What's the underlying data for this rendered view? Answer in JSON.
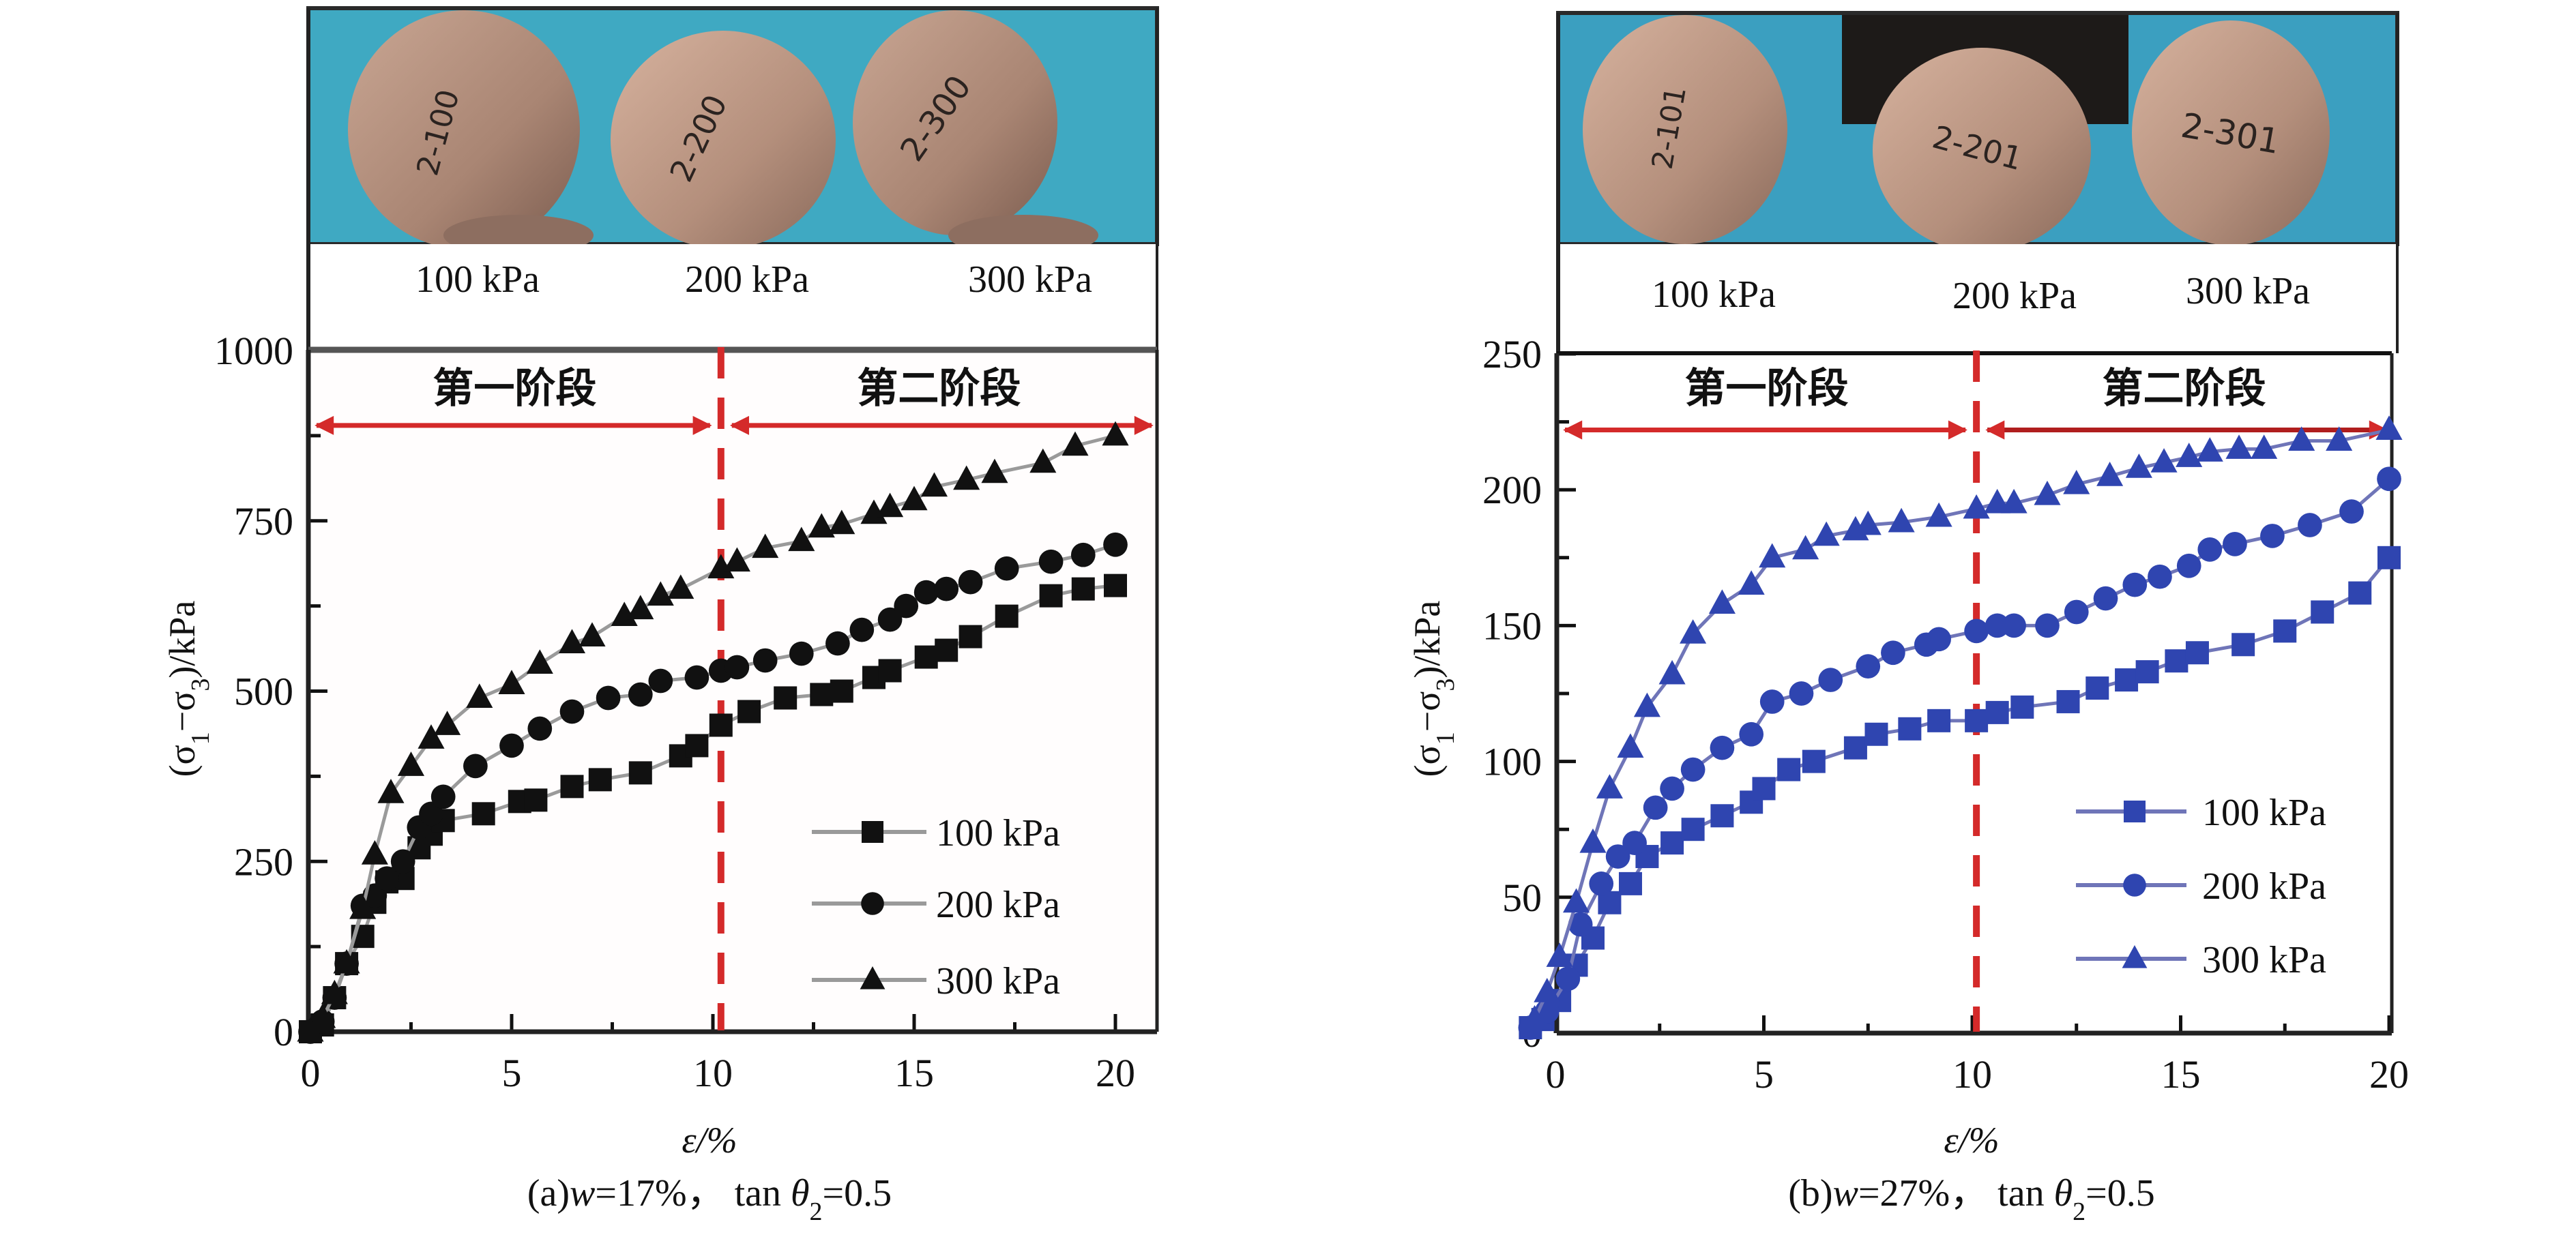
{
  "chart_data": [
    {
      "id": "a",
      "type": "line",
      "caption": {
        "prefix": "(a)",
        "var": "w",
        "moisture": "=17%，",
        "tan": " tan ",
        "theta": "θ",
        "sub": "2",
        "value": "=0.5"
      },
      "photo_labels": [
        "100 kPa",
        "200 kPa",
        "300 kPa"
      ],
      "specimen_marks": [
        "2-100",
        "2-200",
        "2-300"
      ],
      "xlabel": "ε/%",
      "ylabel": {
        "open": "(σ",
        "s1": "1",
        "minus": "−σ",
        "s3": "3",
        "close": ")/kPa"
      },
      "xlim": [
        0,
        21
      ],
      "ylim": [
        0,
        1000
      ],
      "xticks": [
        0,
        5,
        10,
        15,
        20
      ],
      "xtick_labels": [
        "0",
        "5",
        "10",
        "15",
        "20"
      ],
      "yticks": [
        0,
        250,
        500,
        750,
        1000
      ],
      "ytick_labels": [
        "0",
        "250",
        "500",
        "750",
        "1000"
      ],
      "stage_divider_x": 10.2,
      "stage_arrow_y": 890,
      "stages": [
        "第一阶段",
        "第二阶段"
      ],
      "legend_position": "lower-right",
      "marker_color": "#111111",
      "line_color": "#9a9a9a",
      "series": [
        {
          "name": "100 kPa",
          "marker": "square",
          "x": [
            0,
            0.3,
            0.6,
            0.9,
            1.3,
            1.6,
            1.9,
            2.3,
            2.7,
            3.0,
            3.3,
            4.3,
            5.2,
            5.6,
            6.5,
            7.2,
            8.2,
            9.2,
            9.6,
            10.2,
            10.9,
            11.8,
            12.7,
            13.2,
            14.0,
            14.4,
            15.3,
            15.8,
            16.4,
            17.3,
            18.4,
            19.2,
            20.0
          ],
          "y": [
            0,
            10,
            50,
            100,
            140,
            190,
            220,
            225,
            270,
            290,
            310,
            320,
            338,
            340,
            360,
            370,
            380,
            405,
            420,
            450,
            470,
            490,
            495,
            500,
            520,
            530,
            550,
            560,
            580,
            610,
            640,
            650,
            655
          ]
        },
        {
          "name": "200 kPa",
          "marker": "circle",
          "x": [
            0,
            0.3,
            0.6,
            0.9,
            1.3,
            1.6,
            1.9,
            2.3,
            2.7,
            3.0,
            3.3,
            4.1,
            5.0,
            5.7,
            6.5,
            7.4,
            8.2,
            8.7,
            9.6,
            10.2,
            10.6,
            11.3,
            12.2,
            13.1,
            13.7,
            14.4,
            14.8,
            15.3,
            15.8,
            16.4,
            17.3,
            18.4,
            19.2,
            20.0
          ],
          "y": [
            0,
            15,
            50,
            100,
            185,
            200,
            225,
            250,
            300,
            320,
            345,
            390,
            420,
            445,
            470,
            490,
            495,
            515,
            520,
            530,
            535,
            545,
            555,
            570,
            590,
            605,
            625,
            645,
            650,
            660,
            680,
            690,
            700,
            715
          ]
        },
        {
          "name": "300 kPa",
          "marker": "triangle",
          "x": [
            0,
            0.3,
            0.6,
            0.9,
            1.3,
            1.6,
            2.0,
            2.5,
            3.0,
            3.4,
            4.2,
            5.0,
            5.7,
            6.5,
            7.0,
            7.8,
            8.2,
            8.7,
            9.2,
            10.2,
            10.6,
            11.3,
            12.2,
            12.7,
            13.2,
            14.0,
            14.4,
            15.0,
            15.5,
            16.3,
            17.0,
            18.2,
            19.0,
            20.0
          ],
          "y": [
            0,
            20,
            55,
            100,
            180,
            260,
            350,
            390,
            430,
            450,
            490,
            510,
            540,
            570,
            580,
            610,
            620,
            640,
            650,
            680,
            690,
            710,
            720,
            740,
            745,
            760,
            770,
            780,
            800,
            810,
            820,
            835,
            860,
            875
          ]
        }
      ]
    },
    {
      "id": "b",
      "type": "line",
      "caption": {
        "prefix": "(b)",
        "var": "w",
        "moisture": "=27%，",
        "tan": " tan ",
        "theta": "θ",
        "sub": "2",
        "value": "=0.5"
      },
      "photo_labels": [
        "100 kPa",
        "200 kPa",
        "300 kPa"
      ],
      "specimen_marks": [
        "2-101",
        "2-201",
        "2-301"
      ],
      "xlabel": "ε/%",
      "ylabel": {
        "open": "(σ",
        "s1": "1",
        "minus": "−σ",
        "s3": "3",
        "close": ")/kPa"
      },
      "xlim": [
        -0.7,
        20.2
      ],
      "ylim": [
        0,
        250
      ],
      "xticks": [
        0,
        5,
        10,
        15,
        20
      ],
      "xtick_labels": [
        "0",
        "5",
        "10",
        "15",
        "20"
      ],
      "yticks": [
        0,
        50,
        100,
        150,
        200,
        250
      ],
      "ytick_labels": [
        "0",
        "50",
        "100",
        "150",
        "200",
        "250"
      ],
      "stage_divider_x": 10.1,
      "stage_arrow_y": 222,
      "stages": [
        "第一阶段",
        "第二阶段"
      ],
      "legend_position": "lower-right",
      "marker_color": "#2f45b0",
      "line_color": "#6f75b8",
      "series": [
        {
          "name": "100 kPa",
          "marker": "square",
          "x": [
            -0.6,
            -0.3,
            0.1,
            0.5,
            0.9,
            1.3,
            1.8,
            2.2,
            2.8,
            3.3,
            4.0,
            4.7,
            5.0,
            5.6,
            6.2,
            7.2,
            7.7,
            8.5,
            9.2,
            10.1,
            10.6,
            11.2,
            12.3,
            13.0,
            13.7,
            14.2,
            14.9,
            15.4,
            16.5,
            17.5,
            18.4,
            19.3,
            20.0
          ],
          "y": [
            2,
            5,
            12,
            25,
            35,
            48,
            55,
            65,
            70,
            75,
            80,
            85,
            90,
            97,
            100,
            105,
            110,
            112,
            115,
            115,
            118,
            120,
            122,
            127,
            130,
            133,
            137,
            140,
            143,
            148,
            155,
            162,
            175
          ]
        },
        {
          "name": "200 kPa",
          "marker": "circle",
          "x": [
            -0.6,
            -0.2,
            0.3,
            0.6,
            1.1,
            1.5,
            1.9,
            2.4,
            2.8,
            3.3,
            4.0,
            4.7,
            5.2,
            5.9,
            6.6,
            7.5,
            8.1,
            8.9,
            9.2,
            10.1,
            10.6,
            11.0,
            11.8,
            12.5,
            13.2,
            13.9,
            14.5,
            15.2,
            15.7,
            16.3,
            17.2,
            18.1,
            19.1,
            20.0
          ],
          "y": [
            2,
            8,
            20,
            40,
            55,
            65,
            70,
            83,
            90,
            97,
            105,
            110,
            122,
            125,
            130,
            135,
            140,
            143,
            145,
            148,
            150,
            150,
            150,
            155,
            160,
            165,
            168,
            172,
            178,
            180,
            183,
            187,
            192,
            204
          ]
        },
        {
          "name": "300 kPa",
          "marker": "triangle",
          "x": [
            -0.5,
            -0.2,
            0.1,
            0.5,
            0.9,
            1.3,
            1.8,
            2.2,
            2.8,
            3.3,
            4.0,
            4.7,
            5.2,
            6.0,
            6.5,
            7.2,
            7.5,
            8.3,
            9.2,
            10.1,
            10.6,
            11.0,
            11.8,
            12.5,
            13.3,
            14.0,
            14.6,
            15.2,
            15.7,
            16.4,
            17.0,
            17.9,
            18.8,
            20.0
          ],
          "y": [
            5,
            15,
            28,
            48,
            70,
            90,
            105,
            120,
            132,
            147,
            158,
            165,
            175,
            178,
            183,
            185,
            187,
            188,
            190,
            193,
            195,
            195,
            198,
            202,
            205,
            208,
            210,
            212,
            214,
            215,
            215,
            218,
            218,
            222
          ]
        }
      ]
    }
  ]
}
